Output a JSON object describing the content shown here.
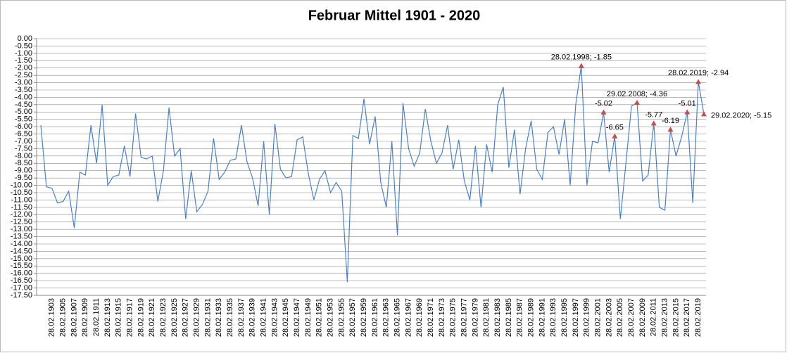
{
  "chart_data": {
    "type": "line",
    "title": "Februar Mittel 1901 - 2020",
    "color": "#4f81bd",
    "marker_color": "#c0504d",
    "grid": true,
    "categories": [
      null,
      null,
      "28.02.1903",
      null,
      "28.02.1905",
      null,
      "28.02.1907",
      null,
      "28.02.1909",
      null,
      "28.02.1911",
      null,
      "28.02.1913",
      null,
      "28.02.1915",
      null,
      "28.02.1917",
      null,
      "28.02.1919",
      null,
      "28.02.1921",
      null,
      "28.02.1923",
      null,
      "28.02.1925",
      null,
      "28.02.1927",
      null,
      "28.02.1929",
      null,
      "28.02.1931",
      null,
      "28.02.1933",
      null,
      "28.02.1935",
      null,
      "28.02.1937",
      null,
      "28.02.1939",
      null,
      "28.02.1941",
      null,
      "28.02.1943",
      null,
      "28.02.1945",
      null,
      "28.02.1947",
      null,
      "28.02.1949",
      null,
      "28.02.1951",
      null,
      "28.02.1953",
      null,
      "28.02.1955",
      null,
      "28.02.1957",
      null,
      "28.02.1959",
      null,
      "28.02.1961",
      null,
      "28.02.1963",
      null,
      "28.02.1965",
      null,
      "28.02.1967",
      null,
      "28.02.1969",
      null,
      "28.02.1971",
      null,
      "28.02.1973",
      null,
      "28.02.1975",
      null,
      "28.02.1977",
      null,
      "28.02.1979",
      null,
      "28.02.1981",
      null,
      "28.02.1983",
      null,
      "28.02.1985",
      null,
      "28.02.1987",
      null,
      "28.02.1989",
      null,
      "28.02.1991",
      null,
      "28.02.1993",
      null,
      "28.02.1995",
      null,
      "28.02.1997",
      null,
      "28.02.1999",
      null,
      "28.02.2001",
      null,
      "28.02.2003",
      null,
      "28.02.2005",
      null,
      "28.02.2007",
      null,
      "28.02.2009",
      null,
      "28.02.2011",
      null,
      "28.02.2013",
      null,
      "28.02.2015",
      null,
      "28.02.2017",
      null,
      "28.02.2019",
      null
    ],
    "values": [
      -5.9,
      -10.1,
      -10.2,
      -11.2,
      -11.1,
      -10.4,
      -12.9,
      -9.1,
      -9.3,
      -5.9,
      -8.5,
      -4.5,
      -10.0,
      -9.4,
      -9.3,
      -7.3,
      -9.4,
      -5.1,
      -8.1,
      -8.2,
      -8.0,
      -11.1,
      -9.0,
      -4.7,
      -8.0,
      -7.5,
      -12.3,
      -9.0,
      -11.8,
      -11.3,
      -10.4,
      -6.8,
      -9.6,
      -9.1,
      -8.3,
      -8.2,
      -5.9,
      -8.4,
      -9.5,
      -11.4,
      -7.0,
      -12.0,
      -5.8,
      -8.9,
      -9.5,
      -9.4,
      -6.9,
      -6.7,
      -9.2,
      -11.0,
      -9.6,
      -9.0,
      -10.5,
      -9.8,
      -10.4,
      -16.6,
      -6.6,
      -6.8,
      -4.1,
      -7.2,
      -5.3,
      -9.8,
      -11.5,
      -7.0,
      -13.4,
      -4.4,
      -7.5,
      -8.7,
      -7.8,
      -4.8,
      -7.0,
      -8.5,
      -7.8,
      -5.9,
      -8.9,
      -6.9,
      -9.7,
      -11.0,
      -7.3,
      -11.5,
      -7.2,
      -9.1,
      -4.5,
      -3.3,
      -8.8,
      -6.2,
      -10.6,
      -7.5,
      -5.6,
      -8.9,
      -9.6,
      -6.4,
      -6.0,
      -7.9,
      -5.5,
      -10.0,
      -4.5,
      -1.85,
      -10.0,
      -7.0,
      -7.1,
      -5.02,
      -9.1,
      -6.65,
      -12.3,
      -8.5,
      -4.6,
      -4.36,
      -9.7,
      -9.3,
      -5.77,
      -11.5,
      -11.7,
      -6.19,
      -8.0,
      -6.7,
      -5.01,
      -11.2,
      -2.94,
      -5.15
    ],
    "value_labels": [
      null,
      null,
      null,
      null,
      null,
      null,
      null,
      null,
      null,
      null,
      null,
      null,
      null,
      null,
      null,
      null,
      null,
      null,
      null,
      null,
      null,
      null,
      null,
      null,
      null,
      null,
      null,
      null,
      null,
      null,
      null,
      null,
      null,
      null,
      null,
      null,
      null,
      null,
      null,
      null,
      null,
      null,
      null,
      null,
      null,
      null,
      null,
      null,
      null,
      null,
      null,
      null,
      null,
      null,
      null,
      null,
      null,
      null,
      null,
      null,
      null,
      null,
      null,
      null,
      null,
      null,
      null,
      null,
      null,
      null,
      null,
      null,
      null,
      null,
      null,
      null,
      null,
      null,
      null,
      null,
      null,
      null,
      null,
      null,
      null,
      null,
      null,
      null,
      null,
      null,
      null,
      null,
      null,
      null,
      null,
      null,
      null,
      "28.02.1998; -1.85",
      null,
      null,
      null,
      "-5.02",
      null,
      "-6.65",
      null,
      null,
      null,
      "29.02.2008; -4.36",
      null,
      null,
      "-5.77",
      null,
      null,
      "-6.19",
      null,
      null,
      "-5.01",
      null,
      "28.02.2019; -2.94",
      "29.02.2020; -5.15"
    ],
    "ylim": [
      -17.5,
      0
    ],
    "yticks": [
      {
        "value": 0,
        "label": "0.00"
      },
      {
        "value": -0.5,
        "label": "-0.50"
      },
      {
        "value": -1,
        "label": "-1.00"
      },
      {
        "value": -1.5,
        "label": "-1.50"
      },
      {
        "value": -2,
        "label": "-2.00"
      },
      {
        "value": -2.5,
        "label": "-2.50"
      },
      {
        "value": -3,
        "label": "-3.00"
      },
      {
        "value": -3.5,
        "label": "-3.50"
      },
      {
        "value": -4,
        "label": "-4.00"
      },
      {
        "value": -4.5,
        "label": "-4.50"
      },
      {
        "value": -5,
        "label": "-5.00"
      },
      {
        "value": -5.5,
        "label": "-5.50"
      },
      {
        "value": -6,
        "label": "-6.00"
      },
      {
        "value": -6.5,
        "label": "-6.50"
      },
      {
        "value": -7,
        "label": "-7.00"
      },
      {
        "value": -7.5,
        "label": "-7.50"
      },
      {
        "value": -8,
        "label": "-8.00"
      },
      {
        "value": -8.5,
        "label": "-8.50"
      },
      {
        "value": -9,
        "label": "-9.00"
      },
      {
        "value": -9.5,
        "label": "-9.50"
      },
      {
        "value": -10,
        "label": "-10.00"
      },
      {
        "value": -10.5,
        "label": "-10.50"
      },
      {
        "value": -11,
        "label": "-11.00"
      },
      {
        "value": -11.5,
        "label": "-11.50"
      },
      {
        "value": -12,
        "label": "-12.00"
      },
      {
        "value": -12.5,
        "label": "-12.50"
      },
      {
        "value": -13,
        "label": "-13.00"
      },
      {
        "value": -13.5,
        "label": "-13.50"
      },
      {
        "value": -14,
        "label": "-14.00"
      },
      {
        "value": -14.5,
        "label": "-14.50"
      },
      {
        "value": -15,
        "label": "-15.00"
      },
      {
        "value": -15.5,
        "label": "-15.50"
      },
      {
        "value": -16,
        "label": "-16.00"
      },
      {
        "value": -16.5,
        "label": "-16.50"
      },
      {
        "value": -17,
        "label": "-17.00"
      },
      {
        "value": -17.5,
        "label": "-17.50"
      }
    ]
  }
}
